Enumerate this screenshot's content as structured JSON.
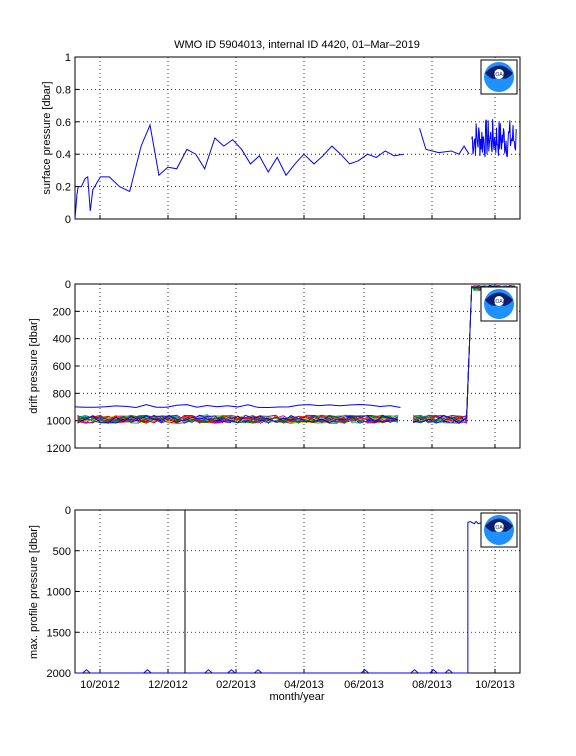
{
  "title": "WMO ID 5904013, internal ID 4420, 01–Mar–2019",
  "xlabel": "month/year",
  "logo_text": "NOAA",
  "colors": {
    "line": "#0000ff",
    "grid": "#000000",
    "background": "#ffffff"
  },
  "chart_data": [
    {
      "type": "line",
      "ylabel": "surface pressure [dbar]",
      "ylim": [
        0,
        1
      ],
      "yticks": [
        "0",
        "0.2",
        "0.4",
        "0.6",
        "0.8",
        "1"
      ],
      "xticks": [
        "10/2012",
        "12/2012",
        "02/2013",
        "04/2013",
        "06/2013",
        "08/2013",
        "10/2013"
      ],
      "grid": true,
      "series": [
        {
          "color": "#0000ff",
          "points": [
            [
              0.0,
              0.0
            ],
            [
              1.5,
              0.15
            ],
            [
              2.5,
              0.2
            ],
            [
              5,
              0.2
            ],
            [
              8,
              0.25
            ],
            [
              10,
              0.26
            ],
            [
              12,
              0.05
            ],
            [
              14,
              0.18
            ],
            [
              20,
              0.26
            ],
            [
              27,
              0.26
            ],
            [
              35,
              0.2
            ],
            [
              43,
              0.17
            ],
            [
              52,
              0.45
            ],
            [
              59,
              0.58
            ],
            [
              66,
              0.27
            ],
            [
              73,
              0.32
            ],
            [
              80,
              0.31
            ],
            [
              88,
              0.43
            ],
            [
              95,
              0.4
            ],
            [
              102,
              0.31
            ],
            [
              110,
              0.5
            ],
            [
              117,
              0.45
            ],
            [
              124,
              0.49
            ],
            [
              131,
              0.43
            ],
            [
              138,
              0.34
            ],
            [
              145,
              0.39
            ],
            [
              152,
              0.29
            ],
            [
              159,
              0.38
            ],
            [
              166,
              0.27
            ],
            [
              173,
              0.34
            ],
            [
              180,
              0.4
            ],
            [
              188,
              0.34
            ],
            [
              195,
              0.39
            ],
            [
              202,
              0.45
            ],
            [
              209,
              0.4
            ],
            [
              216,
              0.34
            ],
            [
              223,
              0.36
            ],
            [
              230,
              0.4
            ],
            [
              237,
              0.38
            ],
            [
              244,
              0.42
            ],
            [
              251,
              0.39
            ],
            [
              258,
              0.4
            ]
          ],
          "continued": [
            [
              271,
              0.56
            ],
            [
              276,
              0.43
            ],
            [
              286,
              0.41
            ],
            [
              296,
              0.42
            ],
            [
              302,
              0.4
            ],
            [
              306,
              0.45
            ],
            [
              310,
              0.4
            ]
          ],
          "noisy_segment": {
            "from": 312,
            "to": 347,
            "min": 0.37,
            "max": 0.62
          }
        }
      ]
    },
    {
      "type": "line",
      "ylabel": "drift pressure [dbar]",
      "ylim": [
        1200,
        0
      ],
      "yticks": [
        "0",
        "200",
        "400",
        "600",
        "800",
        "1000",
        "1200"
      ],
      "grid": true,
      "series_note": "many drift-pressure traces per cycle clustered near 1000 dbar, rising to ~0 dbar after 08/2013",
      "series": [
        {
          "name": "upper",
          "color": "#0000ff",
          "level": 880
        },
        {
          "name": "band",
          "level_min": 960,
          "level_max": 1020
        },
        {
          "name": "shallow",
          "color": "#008000",
          "level": 20
        }
      ]
    },
    {
      "type": "line",
      "ylabel": "max. profile pressure [dbar]",
      "ylim": [
        2000,
        0
      ],
      "yticks": [
        "0",
        "500",
        "1000",
        "1500",
        "2000"
      ],
      "grid": true,
      "series": [
        {
          "color": "#0000ff",
          "level_before": 2000,
          "level_after": 150,
          "step_at_day": 309
        }
      ]
    }
  ]
}
